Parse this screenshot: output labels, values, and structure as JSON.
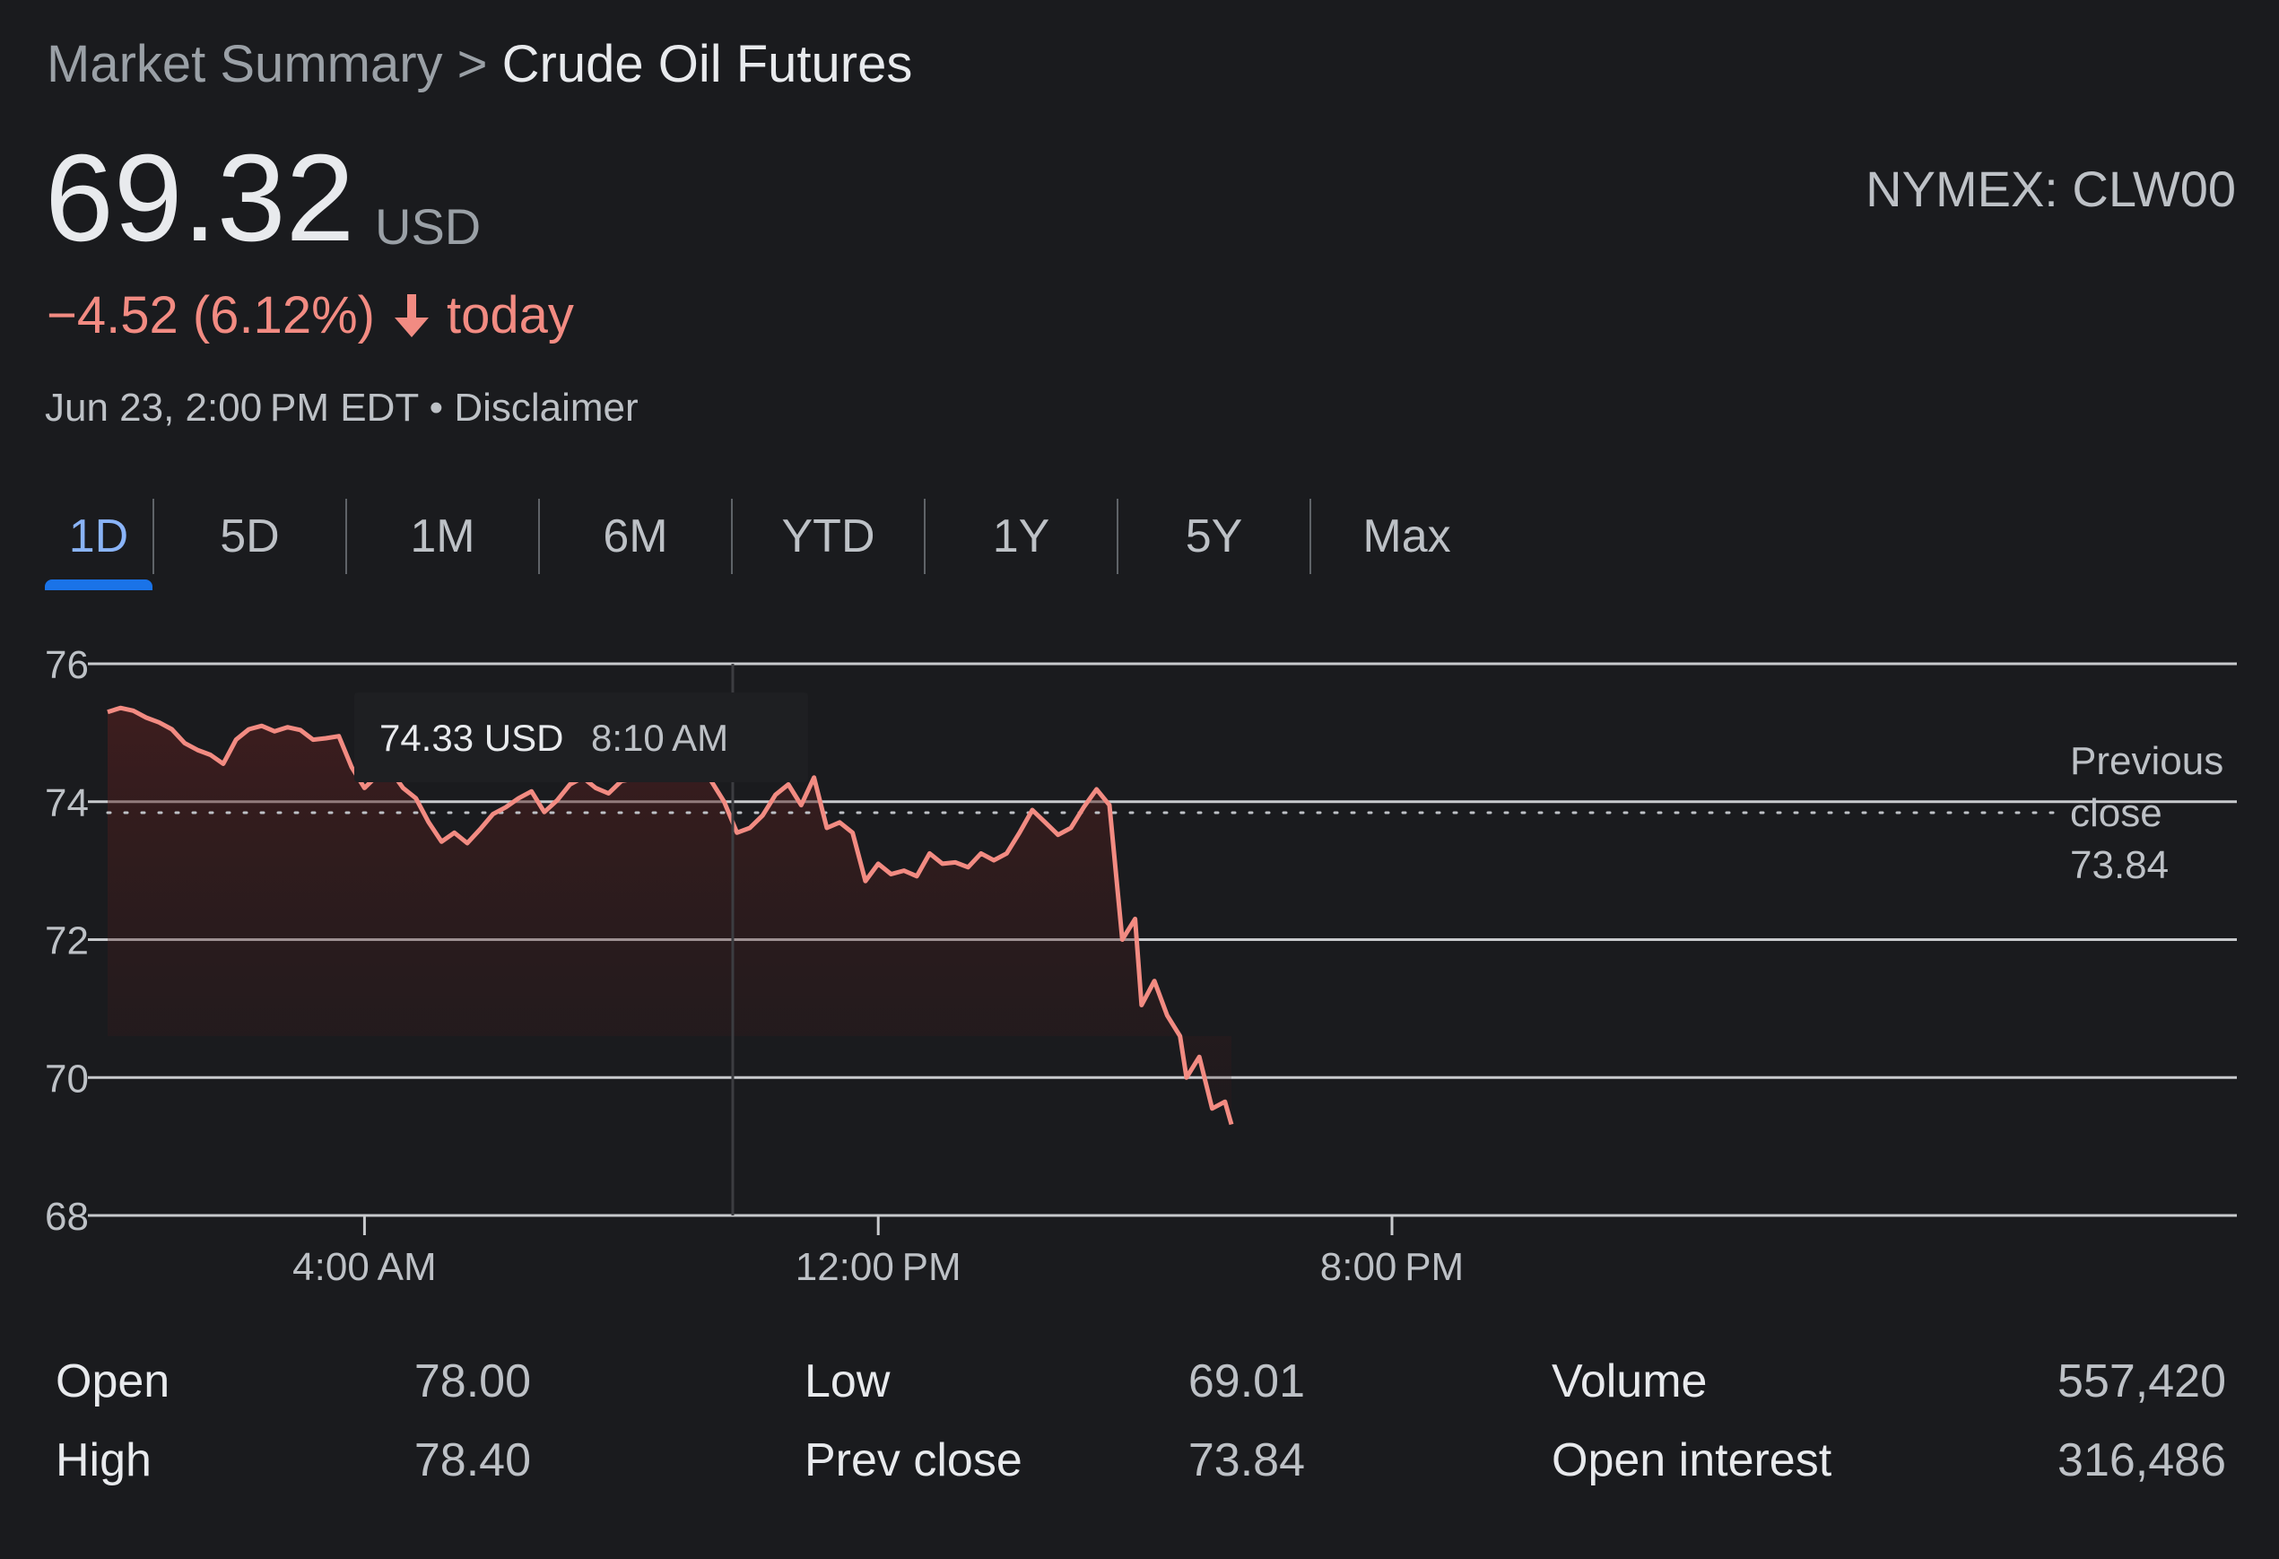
{
  "breadcrumb": {
    "parent": "Market Summary",
    "separator": ">",
    "current": "Crude Oil Futures"
  },
  "quote": {
    "price": "69.32",
    "currency": "USD",
    "ticker": "NYMEX: CLW00",
    "change": "−4.52 (6.12%)",
    "change_period": "today",
    "timestamp": "Jun 23, 2:00 PM EDT",
    "separator": "•",
    "disclaimer": "Disclaimer",
    "down_color": "#f28b82"
  },
  "tabs": [
    {
      "label": "1D",
      "active": true
    },
    {
      "label": "5D"
    },
    {
      "label": "1M"
    },
    {
      "label": "6M"
    },
    {
      "label": "YTD"
    },
    {
      "label": "1Y"
    },
    {
      "label": "5Y"
    },
    {
      "label": "Max"
    }
  ],
  "chart_data": {
    "type": "area",
    "series_color": "#f28b82",
    "ylim": [
      68,
      76
    ],
    "yticks": [
      "76",
      "74",
      "72",
      "70",
      "68"
    ],
    "ytick_values": [
      76,
      74,
      72,
      70,
      68
    ],
    "xlim": [
      0,
      24
    ],
    "xticks": [
      {
        "x": 4,
        "label": "4:00 AM"
      },
      {
        "x": 12,
        "label": "12:00 PM"
      },
      {
        "x": 20,
        "label": "8:00 PM"
      }
    ],
    "reference_line": {
      "value": 73.84,
      "label_lines": [
        "Previous",
        "close",
        "73.84"
      ]
    },
    "tooltip": {
      "price": "74.33 USD",
      "time": "8:10 AM",
      "x": 8.17,
      "y": 74.33
    },
    "grid": true,
    "points": [
      [
        0.0,
        75.3
      ],
      [
        0.2,
        75.36
      ],
      [
        0.4,
        75.32
      ],
      [
        0.6,
        75.22
      ],
      [
        0.8,
        75.15
      ],
      [
        1.0,
        75.05
      ],
      [
        1.2,
        74.85
      ],
      [
        1.4,
        74.75
      ],
      [
        1.6,
        74.68
      ],
      [
        1.8,
        74.55
      ],
      [
        2.0,
        74.9
      ],
      [
        2.2,
        75.05
      ],
      [
        2.4,
        75.1
      ],
      [
        2.6,
        75.02
      ],
      [
        2.8,
        75.08
      ],
      [
        3.0,
        75.04
      ],
      [
        3.2,
        74.9
      ],
      [
        3.4,
        74.92
      ],
      [
        3.6,
        74.95
      ],
      [
        3.8,
        74.5
      ],
      [
        4.0,
        74.2
      ],
      [
        4.2,
        74.38
      ],
      [
        4.4,
        74.46
      ],
      [
        4.6,
        74.2
      ],
      [
        4.8,
        74.05
      ],
      [
        5.0,
        73.7
      ],
      [
        5.2,
        73.42
      ],
      [
        5.4,
        73.55
      ],
      [
        5.6,
        73.4
      ],
      [
        5.8,
        73.6
      ],
      [
        6.0,
        73.82
      ],
      [
        6.2,
        73.92
      ],
      [
        6.4,
        74.05
      ],
      [
        6.6,
        74.15
      ],
      [
        6.8,
        73.85
      ],
      [
        7.0,
        74.02
      ],
      [
        7.2,
        74.25
      ],
      [
        7.4,
        74.35
      ],
      [
        7.6,
        74.2
      ],
      [
        7.8,
        74.12
      ],
      [
        8.0,
        74.3
      ],
      [
        8.17,
        74.33
      ],
      [
        8.4,
        74.4
      ],
      [
        8.6,
        74.38
      ],
      [
        8.8,
        74.48
      ],
      [
        9.0,
        74.45
      ],
      [
        9.2,
        74.45
      ],
      [
        9.4,
        74.3
      ],
      [
        9.6,
        74.0
      ],
      [
        9.8,
        73.55
      ],
      [
        10.0,
        73.62
      ],
      [
        10.2,
        73.8
      ],
      [
        10.4,
        74.1
      ],
      [
        10.6,
        74.25
      ],
      [
        10.8,
        73.95
      ],
      [
        11.0,
        74.35
      ],
      [
        11.2,
        73.62
      ],
      [
        11.4,
        73.7
      ],
      [
        11.6,
        73.55
      ],
      [
        11.8,
        72.85
      ],
      [
        12.0,
        73.1
      ],
      [
        12.2,
        72.95
      ],
      [
        12.4,
        73.0
      ],
      [
        12.6,
        72.92
      ],
      [
        12.8,
        73.25
      ],
      [
        13.0,
        73.1
      ],
      [
        13.2,
        73.12
      ],
      [
        13.4,
        73.05
      ],
      [
        13.6,
        73.25
      ],
      [
        13.8,
        73.15
      ],
      [
        14.0,
        73.25
      ],
      [
        14.2,
        73.55
      ],
      [
        14.4,
        73.88
      ],
      [
        14.6,
        73.7
      ],
      [
        14.8,
        73.52
      ],
      [
        15.0,
        73.62
      ],
      [
        15.2,
        73.92
      ],
      [
        15.4,
        74.18
      ],
      [
        15.6,
        73.95
      ],
      [
        15.8,
        72.0
      ],
      [
        16.0,
        72.3
      ],
      [
        16.1,
        71.05
      ],
      [
        16.3,
        71.4
      ],
      [
        16.5,
        70.9
      ],
      [
        16.7,
        70.6
      ],
      [
        16.8,
        70.0
      ],
      [
        17.0,
        70.3
      ],
      [
        17.2,
        69.55
      ],
      [
        17.4,
        69.65
      ],
      [
        17.5,
        69.32
      ]
    ]
  },
  "stats": {
    "col1": [
      {
        "label": "Open",
        "value": "78.00"
      },
      {
        "label": "High",
        "value": "78.40"
      }
    ],
    "col2": [
      {
        "label": "Low",
        "value": "69.01"
      },
      {
        "label": "Prev close",
        "value": "73.84"
      }
    ],
    "col3": [
      {
        "label": "Volume",
        "value": "557,420"
      },
      {
        "label": "Open interest",
        "value": "316,486"
      }
    ]
  }
}
